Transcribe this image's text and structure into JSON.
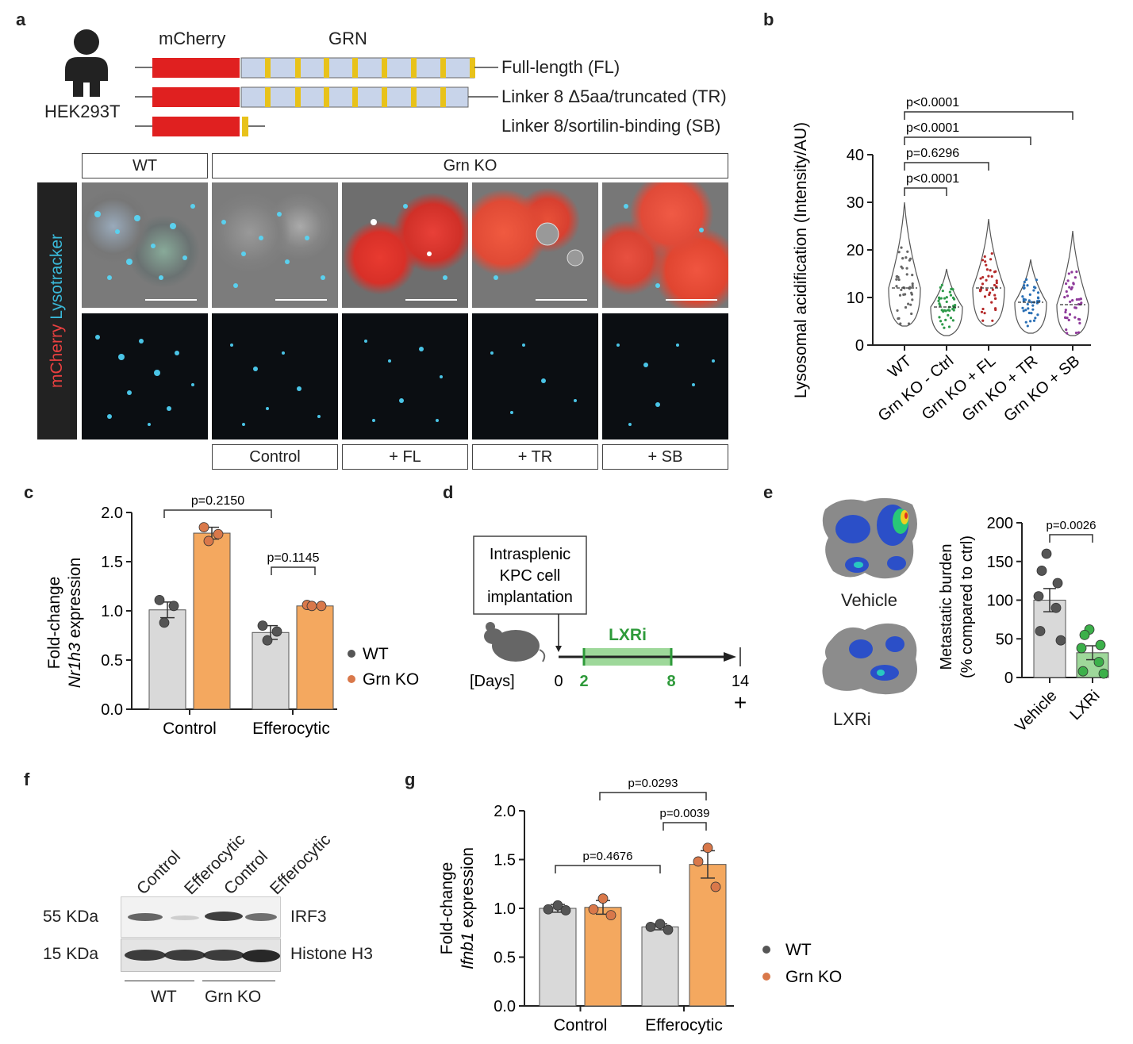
{
  "panels": {
    "a": {
      "letter": "a",
      "cell_line": "HEK293T",
      "mcherry_label": "mCherry",
      "grn_label": "GRN",
      "constructs": [
        "Full-length (FL)",
        "Linker 8 Δ5aa/truncated (TR)",
        "Linker 8/sortilin-binding (SB)"
      ],
      "group_wt": "WT",
      "group_ko": "Grn KO",
      "side_label_red": "mCherry",
      "side_label_cyan": " Lysotracker",
      "conditions": [
        "Control",
        "+ FL",
        "+ TR",
        "+ SB"
      ]
    },
    "b": {
      "letter": "b"
    },
    "c": {
      "letter": "c",
      "legend_wt": "WT",
      "legend_ko": "Grn KO"
    },
    "d": {
      "letter": "d",
      "procedure": [
        "Intrasplenic",
        "KPC cell",
        "implantation"
      ],
      "treatment": "LXRi",
      "days_label": "[Days]",
      "ticks": [
        "0",
        "2",
        "8",
        "14"
      ],
      "endpoint_mark": "+"
    },
    "e": {
      "letter": "e",
      "image_labels": [
        "Vehicle",
        "LXRi"
      ]
    },
    "f": {
      "letter": "f",
      "lane_labels": [
        "Control",
        "Efferocytic",
        "Control",
        "Efferocytic"
      ],
      "band_sizes": [
        "55 KDa",
        "15 KDa"
      ],
      "band_names": [
        "IRF3",
        "Histone H3"
      ],
      "group_labels": [
        "WT",
        "Grn KO"
      ]
    },
    "g": {
      "letter": "g",
      "legend_wt": "WT",
      "legend_ko": "Grn KO"
    }
  },
  "colors": {
    "wt": "#d9d9d9",
    "ko": "#f4a85f",
    "wt_dot": "#555555",
    "ko_dot": "#d9784a",
    "lxri": "#9ed89a",
    "lxri_dot": "#3cb04a",
    "mcherry": "#e02020",
    "linker": "#e8c21a",
    "grn": "#c8d4ea",
    "cyan": "#3ab8d8"
  },
  "chart_data": [
    {
      "id": "b",
      "type": "violin",
      "ylabel": "Lysosomal acidification (Intensity/AU)",
      "categories": [
        "WT",
        "Grn KO - Ctrl",
        "Grn KO + FL",
        "Grn KO + TR",
        "Grn KO + SB"
      ],
      "medians": [
        12,
        8,
        12,
        9,
        8.5
      ],
      "ranges": [
        [
          4,
          30
        ],
        [
          2,
          16
        ],
        [
          4,
          26.5
        ],
        [
          2.5,
          18
        ],
        [
          2,
          24
        ]
      ],
      "colors": [
        "#666666",
        "#2e9a4a",
        "#b52a2a",
        "#2a6fb5",
        "#8e3a9a"
      ],
      "ylim": [
        0,
        40
      ],
      "yticks": [
        0,
        10,
        20,
        30,
        40
      ],
      "comparisons": [
        "p<0.0001",
        "p=0.6296",
        "p<0.0001",
        "p<0.0001"
      ]
    },
    {
      "id": "c",
      "type": "bar",
      "ylabel_line1": "Fold-change",
      "ylabel_gene": "Nr1h3",
      "ylabel_suffix": " expression",
      "categories": [
        "Control",
        "Efferocytic"
      ],
      "series": [
        {
          "name": "WT",
          "values": [
            1.01,
            0.78
          ],
          "sem": [
            0.08,
            0.07
          ],
          "points": [
            [
              1.11,
              1.05,
              0.88
            ],
            [
              0.85,
              0.79,
              0.7
            ]
          ]
        },
        {
          "name": "Grn KO",
          "values": [
            1.79,
            1.05
          ],
          "sem": [
            0.06,
            0.01
          ],
          "points": [
            [
              1.85,
              1.78,
              1.71
            ],
            [
              1.06,
              1.05,
              1.05
            ]
          ]
        }
      ],
      "ylim": [
        0,
        2
      ],
      "yticks": [
        "0.0",
        "0.5",
        "1.0",
        "1.5",
        "2.0"
      ],
      "comparisons": [
        "p=0.2150",
        "p=0.1145"
      ]
    },
    {
      "id": "e",
      "type": "bar",
      "ylabel_line1": "Metastatic burden",
      "ylabel_line2": "(% compared to ctrl)",
      "categories": [
        "Vehicle",
        "LXRi"
      ],
      "values": [
        100,
        32
      ],
      "sem": [
        15,
        9
      ],
      "points": [
        [
          160,
          138,
          122,
          105,
          90,
          60,
          48
        ],
        [
          62,
          55,
          42,
          38,
          20,
          8,
          5
        ]
      ],
      "ylim": [
        0,
        200
      ],
      "yticks": [
        "0",
        "50",
        "100",
        "150",
        "200"
      ],
      "comparisons": [
        "p=0.0026"
      ]
    },
    {
      "id": "g",
      "type": "bar",
      "ylabel_line1": "Fold-change",
      "ylabel_gene": "Ifnb1",
      "ylabel_suffix": " expression",
      "categories": [
        "Control",
        "Efferocytic"
      ],
      "series": [
        {
          "name": "WT",
          "values": [
            1.0,
            0.81
          ],
          "sem": [
            0.04,
            0.03
          ],
          "points": [
            [
              1.03,
              0.99,
              0.98
            ],
            [
              0.84,
              0.81,
              0.78
            ]
          ]
        },
        {
          "name": "Grn KO",
          "values": [
            1.01,
            1.45
          ],
          "sem": [
            0.07,
            0.14
          ],
          "points": [
            [
              1.1,
              0.99,
              0.93
            ],
            [
              1.62,
              1.48,
              1.22
            ]
          ]
        }
      ],
      "ylim": [
        0,
        2
      ],
      "yticks": [
        "0.0",
        "0.5",
        "1.0",
        "1.5",
        "2.0"
      ],
      "comparisons": [
        "p=0.0293",
        "p=0.0039",
        "p=0.4676"
      ]
    }
  ]
}
